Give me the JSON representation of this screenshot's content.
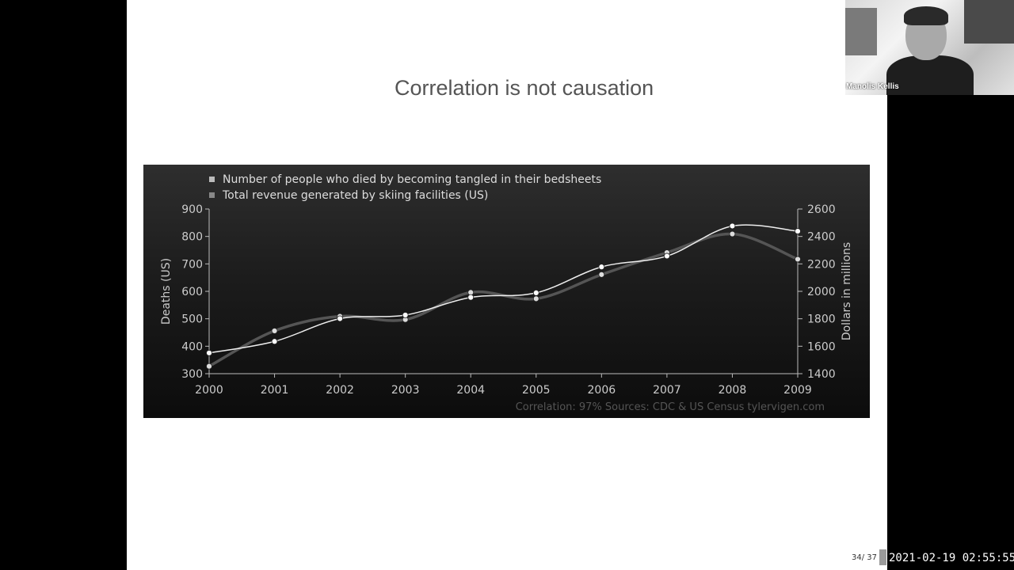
{
  "slide": {
    "title": "Correlation is not causation",
    "page": "34/ 37"
  },
  "chart_data": {
    "type": "line",
    "x": [
      2000,
      2001,
      2002,
      2003,
      2004,
      2005,
      2006,
      2007,
      2008,
      2009
    ],
    "series": [
      {
        "name": "Number of people who died by becoming tangled in their bedsheets",
        "axis": "left",
        "values": [
          327,
          456,
          509,
          497,
          596,
          573,
          661,
          741,
          809,
          717
        ]
      },
      {
        "name": "Total revenue generated by skiing facilities (US)",
        "axis": "right",
        "values": [
          1551,
          1635,
          1801,
          1827,
          1956,
          1989,
          2178,
          2257,
          2476,
          2438
        ]
      }
    ],
    "ylabel": "Deaths (US)",
    "y2label": "Dollars in millions",
    "ylim": [
      300,
      900
    ],
    "y2lim": [
      1400,
      2600
    ],
    "yticks": [
      300,
      400,
      500,
      600,
      700,
      800,
      900
    ],
    "y2ticks": [
      1400,
      1600,
      1800,
      2000,
      2200,
      2400,
      2600
    ],
    "footer": "Correlation: 97%    Sources: CDC & US Census    tylervigen.com",
    "legend_position": "top-left",
    "colors": {
      "series_light": "#eeeeee",
      "series_dark": "#555555",
      "axis": "#bbbbbb",
      "footer": "#555555"
    }
  },
  "webcam": {
    "name": "Manolis Kellis"
  },
  "recording": {
    "timestamp": "2021-02-19 02:55:55"
  }
}
